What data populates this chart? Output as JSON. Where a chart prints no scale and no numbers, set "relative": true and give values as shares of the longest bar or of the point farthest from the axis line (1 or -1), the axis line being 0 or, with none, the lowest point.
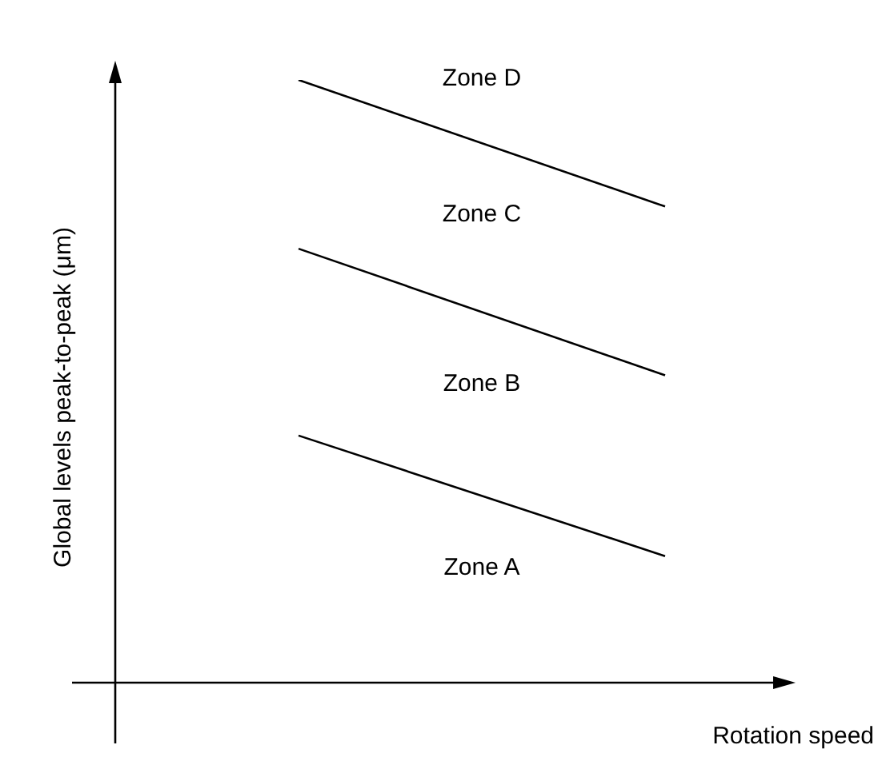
{
  "chart_data": {
    "type": "line",
    "relative": true,
    "xlabel": "Rotation speed",
    "ylabel": "Global levels peak-to-peak (μm)",
    "categories": [
      null,
      null
    ],
    "series": [
      {
        "color": "#000000",
        "values": [
          0.41,
          0.21
        ]
      },
      {
        "color": "#000000",
        "values": [
          0.72,
          0.51
        ]
      },
      {
        "color": "#000000",
        "values": [
          1,
          0.79
        ]
      }
    ],
    "annotations": [
      "Zone A",
      "Zone B",
      "Zone C",
      "Zone D"
    ],
    "legend": false,
    "marker": "none",
    "line_style": "solid"
  }
}
